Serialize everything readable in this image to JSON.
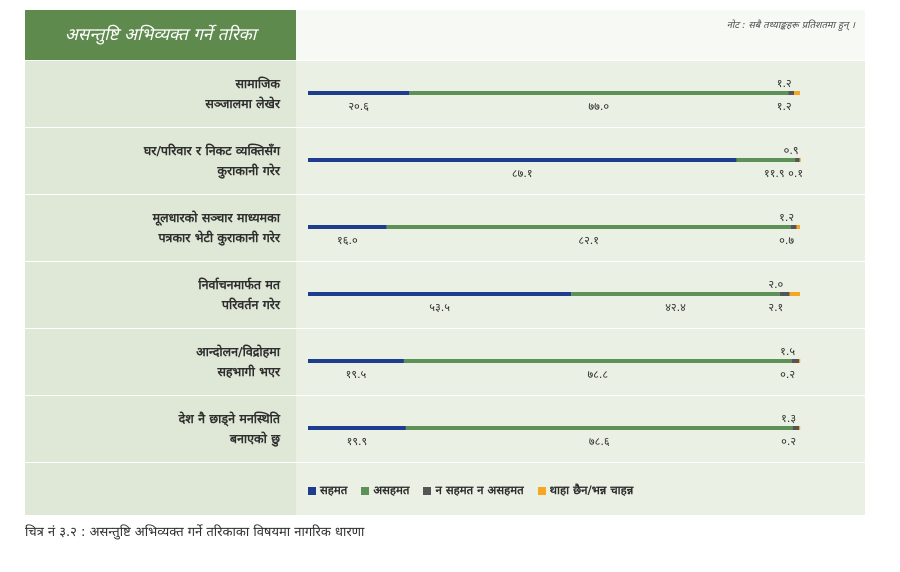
{
  "header": {
    "title": "असन्तुष्टि अभिव्यक्त गर्ने तरिका"
  },
  "note": "नोट : सबै तथ्याङ्कहरू प्रतिशतमा हुन् ।",
  "caption": "चित्र नं ३.२ : असन्तुष्टि अभिव्यक्त गर्ने तरिकाका विषयमा नागरिक धारणा",
  "colors": {
    "agree": "#1f3d8f",
    "disagree": "#5e9158",
    "neutral": "#555555",
    "dontknow": "#f5a623"
  },
  "chart_data": {
    "type": "bar",
    "stacked": true,
    "orientation": "horizontal",
    "xlim": [
      0,
      100
    ],
    "categories": [
      [
        "सामाजिक",
        "सञ्जालमा लेखेर"
      ],
      [
        "घर/परिवार र निकट व्यक्तिसँग",
        "कुराकानी गरेर"
      ],
      [
        "मूलधारको सञ्चार माध्यमका",
        "पत्रकार भेटी कुराकानी गरेर"
      ],
      [
        "निर्वाचनमार्फत मत",
        "परिवर्तन गरेर"
      ],
      [
        "आन्दोलन/विद्रोहमा",
        "सहभागी भएर"
      ],
      [
        "देश नै छाड्ने मनस्थिति",
        "बनाएको छु"
      ]
    ],
    "series": [
      {
        "name": "सहमत",
        "values": [
          20.6,
          87.1,
          16.0,
          53.5,
          19.5,
          19.9
        ],
        "labels": [
          "२०.६",
          "८७.१",
          "१६.०",
          "५३.५",
          "१९.५",
          "१९.९"
        ]
      },
      {
        "name": "असहमत",
        "values": [
          77.0,
          11.9,
          82.1,
          42.4,
          78.8,
          78.6
        ],
        "labels": [
          "७७.०",
          "११.९",
          "८२.१",
          "४२.४",
          "७८.८",
          "७८.६"
        ]
      },
      {
        "name": "न सहमत न असहमत",
        "values": [
          1.2,
          0.9,
          1.2,
          2.0,
          1.5,
          1.3
        ],
        "labels": [
          "१.२",
          "०.९",
          "१.२",
          "२.०",
          "१.५",
          "१.३"
        ]
      },
      {
        "name": "थाहा छैन/भन्न चाहन्न",
        "values": [
          1.2,
          0.1,
          0.7,
          2.1,
          0.2,
          0.2
        ],
        "labels": [
          "१.२",
          "०.१",
          "०.७",
          "२.१",
          "०.२",
          "०.२"
        ]
      }
    ]
  }
}
